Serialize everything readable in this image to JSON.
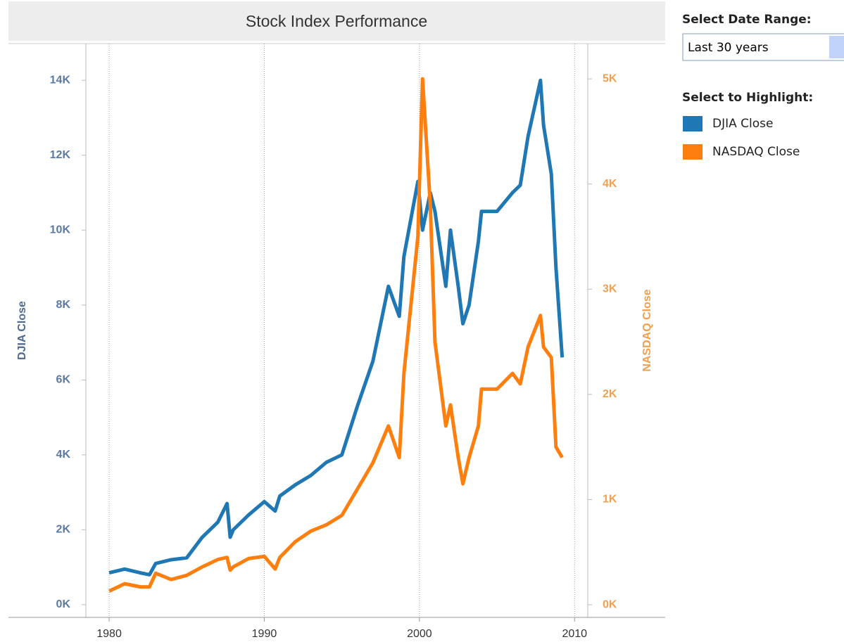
{
  "chart_data": {
    "type": "line",
    "title": "Stock Index Performance",
    "x": [
      1980,
      1981,
      1982,
      1982.6,
      1983,
      1984,
      1985,
      1986,
      1987,
      1987.6,
      1987.8,
      1988,
      1989,
      1990,
      1990.7,
      1991,
      1992,
      1993,
      1994,
      1995,
      1996,
      1997,
      1998,
      1998.7,
      1999,
      1999.9,
      2000.2,
      2000.7,
      2001,
      2001.7,
      2002,
      2002.5,
      2002.8,
      2003.2,
      2003.8,
      2004,
      2005,
      2006,
      2006.5,
      2007,
      2007.8,
      2008,
      2008.5,
      2008.8,
      2009.2
    ],
    "series": [
      {
        "name": "DJIA Close",
        "color": "#1f77b4",
        "axis": "y",
        "values": [
          850,
          950,
          850,
          800,
          1100,
          1200,
          1250,
          1800,
          2200,
          2700,
          1800,
          2000,
          2400,
          2750,
          2500,
          2900,
          3200,
          3450,
          3800,
          4000,
          5300,
          6500,
          8500,
          7700,
          9300,
          11300,
          10000,
          11000,
          10500,
          8500,
          10000,
          8500,
          7500,
          8000,
          9700,
          10500,
          10500,
          11000,
          11200,
          12500,
          14000,
          12800,
          11500,
          9000,
          6600
        ]
      },
      {
        "name": "NASDAQ Close",
        "color": "#ff7f0e",
        "axis": "y2",
        "values": [
          130,
          200,
          170,
          170,
          300,
          240,
          280,
          360,
          430,
          450,
          330,
          360,
          440,
          460,
          340,
          450,
          600,
          700,
          760,
          850,
          1100,
          1350,
          1700,
          1400,
          2200,
          3500,
          5000,
          3800,
          2500,
          1700,
          1900,
          1400,
          1150,
          1400,
          1700,
          2050,
          2050,
          2200,
          2100,
          2450,
          2750,
          2450,
          2350,
          1500,
          1400
        ]
      }
    ],
    "xlim": [
      1978.5,
      2010.85
    ],
    "xticks": [
      1980,
      1990,
      2000,
      2010
    ],
    "grid": true,
    "ylim": [
      -340,
      14980
    ],
    "yticks": [
      {
        "value": 0,
        "label": "0K"
      },
      {
        "value": 2000,
        "label": "2K"
      },
      {
        "value": 4000,
        "label": "4K"
      },
      {
        "value": 6000,
        "label": "6K"
      },
      {
        "value": 8000,
        "label": "8K"
      },
      {
        "value": 10000,
        "label": "10K"
      },
      {
        "value": 12000,
        "label": "12K"
      },
      {
        "value": 14000,
        "label": "14K"
      }
    ],
    "y2lim": [
      -120,
      5335
    ],
    "y2ticks": [
      {
        "value": 0,
        "label": "0K"
      },
      {
        "value": 1000,
        "label": "1K"
      },
      {
        "value": 2000,
        "label": "2K"
      },
      {
        "value": 3000,
        "label": "3K"
      },
      {
        "value": 4000,
        "label": "4K"
      },
      {
        "value": 5000,
        "label": "5K"
      }
    ],
    "y_label": "DJIA Close",
    "y2_label": "NASDAQ Close"
  },
  "controls": {
    "date_range_label": "Select Date Range:",
    "date_range_value": "Last 30 years",
    "highlight_label": "Select to Highlight:"
  }
}
